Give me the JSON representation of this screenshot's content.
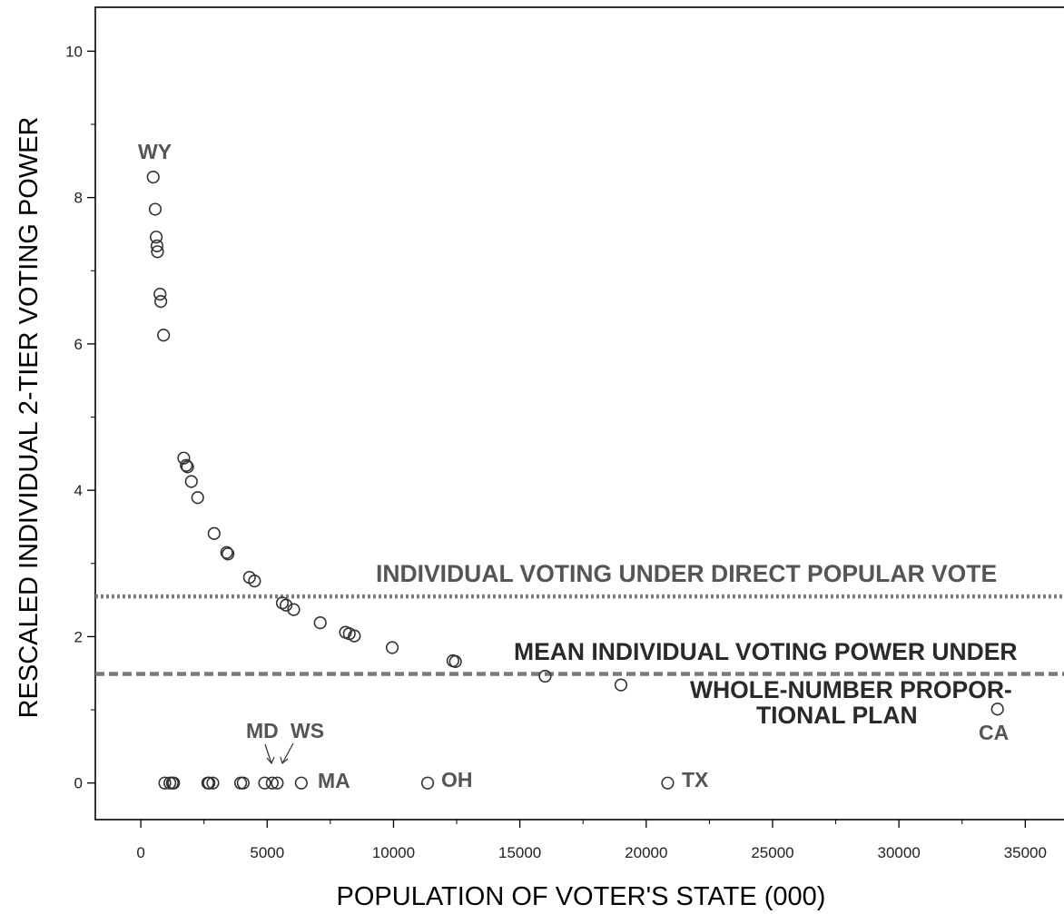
{
  "chart_data": {
    "type": "scatter",
    "xlabel": "POPULATION OF VOTER'S STATE  (000)",
    "ylabel": "RESCALED  INDIVIDUAL 2-TIER VOTING POWER",
    "xlim": [
      -1800,
      37000
    ],
    "ylim": [
      -0.5,
      10.6
    ],
    "x_ticks": [
      "0",
      "5000",
      "10000",
      "15000",
      "20000",
      "25000",
      "30000",
      "35000"
    ],
    "y_ticks": [
      "0",
      "2",
      "4",
      "6",
      "8",
      "10"
    ],
    "grid": false,
    "points": [
      {
        "x": 490,
        "y": 8.28
      },
      {
        "x": 570,
        "y": 7.84
      },
      {
        "x": 610,
        "y": 7.46
      },
      {
        "x": 640,
        "y": 7.34
      },
      {
        "x": 660,
        "y": 7.26
      },
      {
        "x": 760,
        "y": 6.68
      },
      {
        "x": 790,
        "y": 6.58
      },
      {
        "x": 900,
        "y": 6.12
      },
      {
        "x": 1700,
        "y": 4.44
      },
      {
        "x": 1800,
        "y": 4.34
      },
      {
        "x": 1850,
        "y": 4.32
      },
      {
        "x": 2000,
        "y": 4.12
      },
      {
        "x": 2250,
        "y": 3.9
      },
      {
        "x": 2900,
        "y": 3.41
      },
      {
        "x": 3400,
        "y": 3.15
      },
      {
        "x": 3450,
        "y": 3.13
      },
      {
        "x": 4300,
        "y": 2.81
      },
      {
        "x": 4500,
        "y": 2.76
      },
      {
        "x": 5600,
        "y": 2.46
      },
      {
        "x": 5750,
        "y": 2.43
      },
      {
        "x": 6050,
        "y": 2.37
      },
      {
        "x": 7100,
        "y": 2.19
      },
      {
        "x": 8100,
        "y": 2.06
      },
      {
        "x": 8250,
        "y": 2.04
      },
      {
        "x": 8450,
        "y": 2.01
      },
      {
        "x": 9950,
        "y": 1.85
      },
      {
        "x": 12350,
        "y": 1.67
      },
      {
        "x": 12450,
        "y": 1.66
      },
      {
        "x": 16000,
        "y": 1.46
      },
      {
        "x": 19000,
        "y": 1.34
      },
      {
        "x": 33900,
        "y": 1.01
      },
      {
        "x": 950,
        "y": 0
      },
      {
        "x": 1150,
        "y": 0
      },
      {
        "x": 1250,
        "y": 0
      },
      {
        "x": 1300,
        "y": 0
      },
      {
        "x": 2650,
        "y": 0
      },
      {
        "x": 2700,
        "y": 0
      },
      {
        "x": 2850,
        "y": 0
      },
      {
        "x": 3950,
        "y": 0
      },
      {
        "x": 4050,
        "y": 0
      },
      {
        "x": 4900,
        "y": 0
      },
      {
        "x": 5200,
        "y": 0
      },
      {
        "x": 5400,
        "y": 0
      },
      {
        "x": 6350,
        "y": 0
      },
      {
        "x": 11350,
        "y": 0
      },
      {
        "x": 20850,
        "y": 0
      }
    ],
    "reference_lines": [
      {
        "y": 2.55,
        "style": "dotted",
        "label": "INDIVIDUAL VOTING UNDER DIRECT POPULAR VOTE"
      },
      {
        "y": 1.49,
        "style": "dashed",
        "label_lines": [
          "MEAN INDIVIDUAL  VOTING POWER UNDER",
          "WHOLE-NUMBER PROPOR-",
          "TIONAL PLAN"
        ]
      }
    ],
    "point_labels": {
      "wy": "WY",
      "md": "MD",
      "ws": "WS",
      "ma": "MA",
      "oh": "OH",
      "tx": "TX",
      "ca": "CA"
    },
    "colors": {
      "marker": "#333333",
      "line": "#7a7a7a",
      "axis": "#000000"
    }
  }
}
